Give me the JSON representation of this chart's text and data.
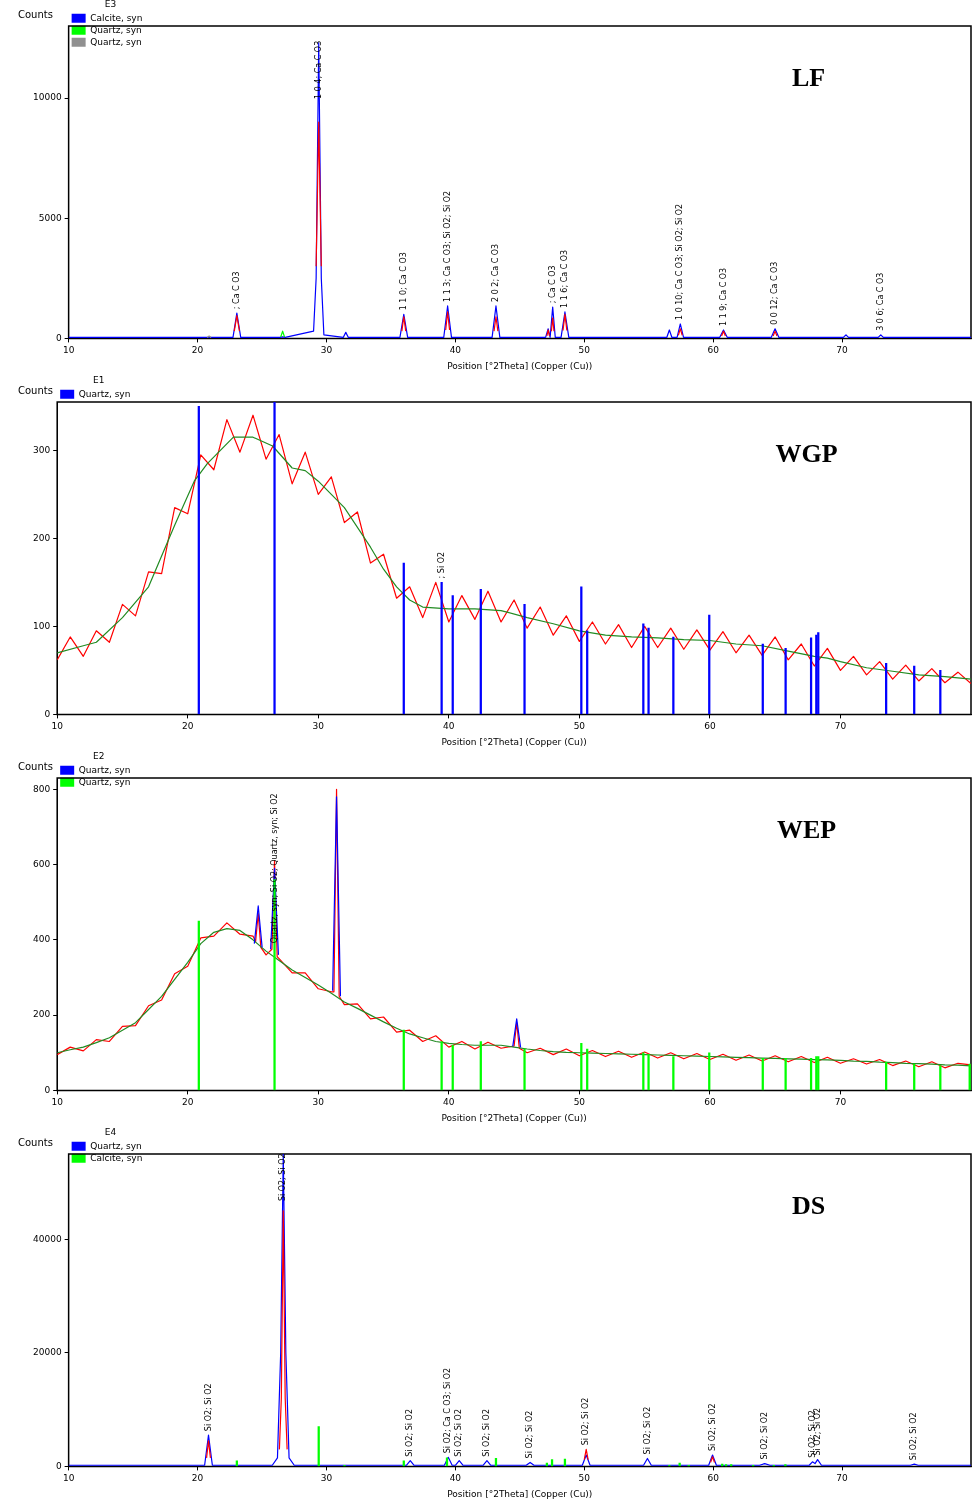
{
  "chart_data": [
    {
      "type": "line",
      "ylabel": "Counts",
      "xlabel": "Position [°2Theta] (Copper (Cu))",
      "legend_title": "E3",
      "legend": "top left",
      "grid": false,
      "marker": "none",
      "xlim": [
        10,
        80
      ],
      "xticks": [
        10,
        20,
        30,
        40,
        50,
        60,
        70
      ],
      "ylim": [
        0,
        13000
      ],
      "yticks": [
        0,
        5000,
        10000
      ],
      "series": [
        {
          "name": "Calcite, syn",
          "color": "#0000ff",
          "x": [
            10,
            20,
            22.75,
            23.05,
            23.35,
            26.4,
            26.6,
            26.8,
            29.0,
            29.2,
            29.4,
            29.6,
            29.8,
            31.3,
            31.5,
            31.7,
            35.7,
            36.0,
            36.3,
            39.1,
            39.4,
            39.7,
            42.85,
            43.15,
            43.45,
            47.0,
            47.2,
            47.35,
            47.55,
            47.75,
            48.2,
            48.5,
            48.8,
            56.4,
            56.6,
            56.8,
            57.2,
            57.45,
            57.7,
            60.5,
            60.8,
            61.1,
            64.5,
            64.8,
            65.1,
            70.1,
            70.3,
            70.5,
            72.8,
            73.0,
            73.2,
            80
          ],
          "values": [
            40,
            40,
            40,
            1050,
            40,
            40,
            60,
            40,
            300,
            2500,
            12300,
            2500,
            150,
            40,
            250,
            40,
            40,
            1000,
            40,
            40,
            1350,
            40,
            40,
            1350,
            40,
            40,
            400,
            40,
            1300,
            40,
            40,
            1100,
            40,
            40,
            350,
            40,
            40,
            600,
            40,
            40,
            350,
            40,
            40,
            400,
            40,
            40,
            150,
            40,
            40,
            150,
            40,
            40
          ]
        },
        {
          "name": "Quartz, syn",
          "color": "#00ff00",
          "x": [
            26.45,
            26.6,
            26.75
          ],
          "values": [
            60,
            300,
            60
          ]
        },
        {
          "name": "Quartz, syn",
          "color": "#909090",
          "x": [
            20.75,
            20.9,
            21.05
          ],
          "values": [
            40,
            100,
            40
          ]
        },
        {
          "color": "#ff0000",
          "x": [
            22.85,
            23.05,
            23.25,
            25,
            29.2,
            29.4,
            29.6,
            30.5,
            35.85,
            36.0,
            36.15,
            38,
            39.25,
            39.4,
            39.55,
            41,
            43.0,
            43.15,
            43.3,
            45,
            47.1,
            47.2,
            47.3,
            47.4,
            47.45,
            47.55,
            47.65,
            48,
            48.35,
            48.5,
            48.65,
            52,
            57.3,
            57.45,
            57.6,
            59,
            60.65,
            60.8,
            60.95,
            63,
            64.65,
            64.8,
            64.95
          ],
          "values": [
            300,
            950,
            300,
            null,
            3000,
            9000,
            3000,
            null,
            300,
            900,
            300,
            null,
            350,
            1100,
            350,
            null,
            300,
            900,
            300,
            null,
            100,
            350,
            100,
            null,
            300,
            850,
            300,
            null,
            330,
            1000,
            330,
            null,
            130,
            400,
            130,
            null,
            100,
            300,
            100,
            null,
            100,
            300,
            100
          ]
        }
      ],
      "annotations": [
        "LF",
        {
          "text": "; Ca C O3",
          "x": 23.05,
          "y": 1050
        },
        {
          "text": "1 0 4; Ca C O3",
          "x": 29.4,
          "y": 9800
        },
        {
          "text": "1 1 0; Ca C O3",
          "x": 36.0,
          "y": 1000
        },
        {
          "text": "1 1 3; Ca C O3; Si O2; Si O2",
          "x": 39.4,
          "y": 1350
        },
        {
          "text": "2 0 2; Ca C O3",
          "x": 43.15,
          "y": 1350
        },
        {
          "text": "; Ca C O3",
          "x": 47.55,
          "y": 1300
        },
        {
          "text": "1 1 6; Ca C O3",
          "x": 48.5,
          "y": 1100
        },
        {
          "text": "1 0 10; Ca C O3; Si O2; Si O2",
          "x": 57.45,
          "y": 600
        },
        {
          "text": "1 1 9; Ca C O3",
          "x": 60.8,
          "y": 350
        },
        {
          "text": "0 0 12; Ca C O3",
          "x": 64.8,
          "y": 400
        },
        {
          "text": "3 0 6; Ca C O3",
          "x": 73.0,
          "y": 150
        }
      ]
    },
    {
      "type": "line",
      "ylabel": "Counts",
      "xlabel": "Position [°2Theta] (Copper (Cu))",
      "legend_title": "E1",
      "legend": "top left",
      "grid": false,
      "marker": "none",
      "xlim": [
        10,
        80
      ],
      "xticks": [
        10,
        20,
        30,
        40,
        50,
        60,
        70
      ],
      "ylim": [
        0,
        355
      ],
      "yticks": [
        0,
        100,
        200,
        300
      ],
      "series": [
        {
          "color": "#ff0000",
          "x": [
            10,
            11,
            12,
            13,
            14,
            15,
            16,
            17,
            18,
            19,
            20,
            21,
            22,
            23,
            24,
            25,
            26,
            27,
            28,
            29,
            30,
            31,
            32,
            33,
            34,
            35,
            36,
            37,
            38,
            39,
            40,
            41,
            42,
            43,
            44,
            45,
            46,
            47,
            48,
            49,
            50,
            51,
            52,
            53,
            54,
            55,
            56,
            57,
            58,
            59,
            60,
            61,
            62,
            63,
            64,
            65,
            66,
            67,
            68,
            69,
            70,
            71,
            72,
            73,
            74,
            75,
            76,
            77,
            78,
            79,
            80
          ],
          "values": [
            62,
            88,
            66,
            95,
            82,
            125,
            112,
            162,
            160,
            235,
            228,
            295,
            278,
            335,
            298,
            340,
            290,
            318,
            262,
            298,
            250,
            270,
            218,
            230,
            172,
            182,
            132,
            145,
            110,
            150,
            105,
            135,
            108,
            140,
            105,
            130,
            98,
            122,
            90,
            112,
            83,
            105,
            80,
            102,
            76,
            100,
            76,
            98,
            74,
            96,
            73,
            94,
            70,
            90,
            67,
            88,
            62,
            80,
            55,
            75,
            50,
            66,
            45,
            60,
            40,
            56,
            38,
            52,
            36,
            48,
            35
          ]
        },
        {
          "color": "#228b22",
          "x": [
            10,
            12,
            13,
            15,
            17,
            19,
            20.5,
            21.5,
            22.5,
            23.5,
            25,
            26.5,
            28,
            29,
            30,
            32,
            34,
            35,
            36,
            37,
            38,
            40,
            42,
            44,
            46,
            48,
            50,
            52,
            54,
            56,
            58,
            60,
            62,
            64,
            66,
            68,
            69,
            70,
            72,
            74,
            76,
            78,
            80
          ],
          "values": [
            70,
            78,
            82,
            110,
            145,
            215,
            265,
            285,
            300,
            315,
            315,
            305,
            280,
            277,
            265,
            235,
            190,
            165,
            145,
            130,
            122,
            120,
            120,
            118,
            110,
            103,
            95,
            90,
            88,
            87,
            85,
            84,
            80,
            78,
            72,
            66,
            64,
            60,
            53,
            49,
            45,
            43,
            40
          ]
        },
        {
          "name": "Quartz, syn",
          "type": "bar",
          "color": "#0000ff",
          "x": [
            20.85,
            26.65,
            36.55,
            39.45,
            40.3,
            42.45,
            45.8,
            50.15,
            50.6,
            54.9,
            55.3,
            57.2,
            59.95,
            64.05,
            65.8,
            67.75,
            68.15,
            68.3,
            73.5,
            75.65,
            77.65
          ],
          "values": [
            350,
            355,
            172,
            150,
            135,
            142,
            125,
            145,
            95,
            103,
            98,
            88,
            113,
            80,
            75,
            87,
            90,
            93,
            58,
            55,
            50
          ]
        }
      ],
      "annotations": [
        "WGP",
        {
          "text": "; Si O2",
          "x": 39.45,
          "y": 150
        }
      ]
    },
    {
      "type": "line",
      "ylabel": "Counts",
      "xlabel": "Position [°2Theta] (Copper (Cu))",
      "legend_title": "E2",
      "legend": "top left",
      "grid": false,
      "marker": "none",
      "xlim": [
        10,
        80
      ],
      "xticks": [
        10,
        20,
        30,
        40,
        50,
        60,
        70
      ],
      "ylim": [
        0,
        830
      ],
      "yticks": [
        0,
        200,
        400,
        600,
        800
      ],
      "series": [
        {
          "color": "#ff0000",
          "x": [
            10,
            11,
            12,
            13,
            14,
            15,
            16,
            17,
            18,
            19,
            20,
            21,
            22,
            23,
            24,
            25,
            25.2,
            25.4,
            25.6,
            26,
            26.45,
            26.65,
            26.85,
            27,
            28,
            29,
            30,
            31,
            31.2,
            31.4,
            31.6,
            32,
            33,
            34,
            35,
            36,
            37,
            38,
            39,
            40,
            41,
            42,
            43,
            44,
            45,
            45.2,
            45.4,
            46,
            47,
            48,
            49,
            50,
            51,
            52,
            53,
            54,
            55,
            56,
            57,
            58,
            59,
            60,
            61,
            62,
            63,
            64,
            65,
            66,
            67,
            68,
            69,
            70,
            71,
            72,
            73,
            74,
            75,
            76,
            77,
            78,
            79,
            80
          ],
          "values": [
            95,
            115,
            105,
            135,
            130,
            170,
            172,
            225,
            240,
            310,
            330,
            405,
            410,
            445,
            415,
            410,
            395,
            470,
            380,
            360,
            375,
            610,
            355,
            350,
            312,
            312,
            270,
            262,
            262,
            800,
            250,
            228,
            230,
            190,
            195,
            155,
            160,
            130,
            145,
            115,
            130,
            110,
            128,
            112,
            118,
            180,
            112,
            100,
            112,
            95,
            110,
            92,
            106,
            90,
            104,
            88,
            102,
            86,
            100,
            84,
            98,
            82,
            96,
            80,
            94,
            78,
            92,
            76,
            90,
            74,
            88,
            72,
            84,
            70,
            82,
            66,
            78,
            63,
            76,
            60,
            72,
            68
          ]
        },
        {
          "color": "#228b22",
          "x": [
            10,
            11,
            12,
            13,
            14,
            15,
            16,
            17,
            18,
            19,
            20,
            21,
            22,
            23,
            24,
            25,
            26,
            27,
            28,
            29,
            30,
            31,
            32,
            33,
            34,
            35,
            36,
            37,
            38,
            39,
            40,
            41,
            42,
            43,
            44,
            45,
            46,
            47,
            48,
            49,
            50,
            51,
            52,
            53,
            54,
            55,
            56,
            57,
            58,
            59,
            60,
            61,
            62,
            63,
            64,
            65,
            66,
            67,
            68,
            69,
            70,
            71,
            72,
            73,
            74,
            75,
            76,
            77,
            78,
            79,
            80
          ],
          "values": [
            100,
            108,
            115,
            127,
            140,
            160,
            180,
            215,
            250,
            295,
            340,
            390,
            420,
            430,
            425,
            400,
            370,
            345,
            320,
            300,
            280,
            258,
            235,
            218,
            200,
            182,
            165,
            150,
            140,
            130,
            125,
            122,
            120,
            120,
            120,
            115,
            110,
            106,
            103,
            101,
            100,
            99,
            98,
            97,
            96,
            95,
            94,
            93,
            92,
            91,
            90,
            89,
            88,
            87,
            86,
            85,
            84,
            83,
            82,
            81,
            80,
            78,
            77,
            75,
            74,
            72,
            71,
            70,
            68,
            67,
            65
          ]
        },
        {
          "name": "Quartz, syn",
          "color": "#0000ff",
          "x": [
            25.1,
            25.4,
            25.7,
            26,
            26.35,
            26.65,
            26.95,
            29,
            31.1,
            31.4,
            31.7,
            40,
            44.9,
            45.2,
            45.5
          ],
          "values": [
            390,
            490,
            380,
            null,
            375,
            590,
            360,
            null,
            265,
            780,
            250,
            null,
            117,
            190,
            114
          ]
        },
        {
          "name": "Quartz, syn",
          "type": "bar",
          "color": "#00ff00",
          "x": [
            20.85,
            26.65,
            36.55,
            39.45,
            40.3,
            42.45,
            45.8,
            50.15,
            50.6,
            54.9,
            55.3,
            57.2,
            59.95,
            64.05,
            65.8,
            67.75,
            68.15,
            68.3,
            73.5,
            75.65,
            77.65,
            79.9
          ],
          "values": [
            450,
            560,
            160,
            130,
            120,
            130,
            110,
            125,
            110,
            100,
            95,
            90,
            100,
            85,
            85,
            85,
            90,
            90,
            75,
            70,
            65,
            70
          ]
        }
      ],
      "annotations": [
        "WEP",
        {
          "text": "Quartz, syn; Si O2; Quartz, syn; Si O2",
          "x": 26.65,
          "y": 380
        }
      ]
    },
    {
      "type": "line",
      "ylabel": "Counts",
      "xlabel": "Position [°2Theta] (Copper (Cu))",
      "legend_title": "E4",
      "legend": "top left",
      "grid": false,
      "marker": "none",
      "xlim": [
        10,
        80
      ],
      "xticks": [
        10,
        20,
        30,
        40,
        50,
        60,
        70
      ],
      "ylim": [
        0,
        55000
      ],
      "yticks": [
        0,
        20000,
        40000
      ],
      "series": [
        {
          "name": "Quartz, syn",
          "color": "#0000ff",
          "x": [
            10,
            20.55,
            20.85,
            21.15,
            25.8,
            26.2,
            26.45,
            26.65,
            26.85,
            27.1,
            27.5,
            36.2,
            36.5,
            36.8,
            39.15,
            39.45,
            39.75,
            40.0,
            40.3,
            40.6,
            42.15,
            42.45,
            42.75,
            45.5,
            45.8,
            46.1,
            49.85,
            50.15,
            50.45,
            54.6,
            54.9,
            55.2,
            59.65,
            59.95,
            60.25,
            63.6,
            64.0,
            64.4,
            67.45,
            67.7,
            67.9,
            68.1,
            68.4,
            75.3,
            75.6,
            75.9,
            80
          ],
          "values": [
            200,
            200,
            5500,
            200,
            200,
            1500,
            20000,
            55000,
            20000,
            1500,
            200,
            200,
            1000,
            200,
            200,
            1600,
            200,
            200,
            1000,
            200,
            200,
            1000,
            200,
            200,
            700,
            200,
            200,
            2000,
            200,
            200,
            1400,
            200,
            200,
            2000,
            200,
            200,
            500,
            200,
            200,
            800,
            500,
            1200,
            200,
            200,
            400,
            200,
            200
          ]
        },
        {
          "color": "#ff0000",
          "x": [
            20.7,
            20.85,
            21.0,
            23,
            26.35,
            26.5,
            26.65,
            26.8,
            26.95,
            30,
            50.0,
            50.15,
            50.3,
            52,
            59.8,
            59.95,
            60.1
          ],
          "values": [
            1500,
            4500,
            1500,
            null,
            3000,
            12000,
            45000,
            12000,
            3000,
            null,
            1200,
            3000,
            1200,
            null,
            700,
            1700,
            700
          ]
        },
        {
          "name": "Calcite, syn",
          "type": "bar",
          "color": "#00ff00",
          "x": [
            23.05,
            29.4,
            31.4,
            36.0,
            39.35,
            43.15,
            47.1,
            47.5,
            48.5,
            56.6,
            57.4,
            58.1,
            60.7,
            61.0,
            61.4,
            63.1,
            64.7,
            65.6
          ],
          "values": [
            1000,
            7000,
            200,
            1000,
            1500,
            1400,
            600,
            1200,
            1300,
            200,
            600,
            200,
            400,
            300,
            300,
            200,
            200,
            300
          ]
        }
      ],
      "annotations": [
        "DS",
        {
          "text": "Si O2; Si O2",
          "x": 20.85,
          "y": 5500
        },
        {
          "text": "Si O2; Si O2",
          "x": 26.65,
          "y": 46000
        },
        {
          "text": "Si O2; Si O2",
          "x": 36.5,
          "y": 1000
        },
        {
          "text": "Si O2; Ca C O3; Si O2",
          "x": 39.45,
          "y": 1600
        },
        {
          "text": "Si O2; Si O2",
          "x": 40.3,
          "y": 1000
        },
        {
          "text": "Si O2; Si O2",
          "x": 42.45,
          "y": 1000
        },
        {
          "text": "Si O2; Si O2",
          "x": 45.8,
          "y": 700
        },
        {
          "text": "Si O2; Si O2",
          "x": 50.15,
          "y": 3000
        },
        {
          "text": "Si O2; Si O2",
          "x": 54.9,
          "y": 1400
        },
        {
          "text": "Si O2; Si O2",
          "x": 59.95,
          "y": 2000
        },
        {
          "text": "Si O2; Si O2",
          "x": 64.0,
          "y": 500
        },
        {
          "text": "Si O2; Si O2",
          "x": 67.7,
          "y": 800
        },
        {
          "text": "Si O2; Si O2",
          "x": 68.1,
          "y": 1200
        },
        {
          "text": "Si O2; Si O2",
          "x": 75.6,
          "y": 400
        }
      ]
    }
  ]
}
